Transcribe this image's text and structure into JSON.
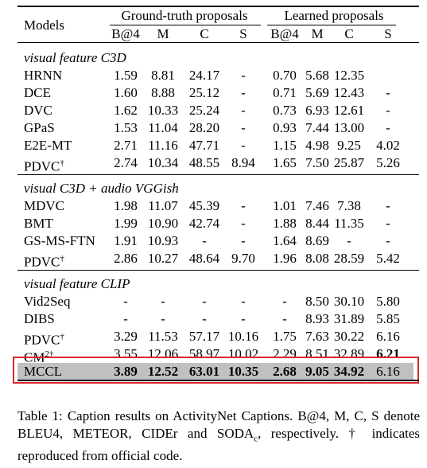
{
  "header": {
    "models": "Models",
    "groups": [
      "Ground-truth proposals",
      "Learned proposals"
    ],
    "metrics": [
      "B@4",
      "M",
      "C",
      "S",
      "B@4",
      "M",
      "C",
      "S"
    ]
  },
  "sections": [
    {
      "title": "visual feature C3D",
      "rows": [
        {
          "model": "HRNN",
          "cells": [
            "1.59",
            "8.81",
            "24.17",
            "-",
            "0.70",
            "5.68",
            "12.35",
            null
          ]
        },
        {
          "model": "DCE",
          "cells": [
            "1.60",
            "8.88",
            "25.12",
            "-",
            "0.71",
            "5.69",
            "12.43",
            "-"
          ]
        },
        {
          "model": "DVC",
          "cells": [
            "1.62",
            "10.33",
            "25.24",
            "-",
            "0.73",
            "6.93",
            "12.61",
            "-"
          ]
        },
        {
          "model": "GPaS",
          "cells": [
            "1.53",
            "11.04",
            "28.20",
            "-",
            "0.93",
            "7.44",
            "13.00",
            "-"
          ]
        },
        {
          "model": "E2E-MT",
          "cells": [
            "2.71",
            "11.16",
            "47.71",
            "-",
            "1.15",
            "4.98",
            "9.25",
            "4.02"
          ]
        },
        {
          "model": "PDVC",
          "sup": "†",
          "cells": [
            "2.74",
            "10.34",
            "48.55",
            "8.94",
            "1.65",
            "7.50",
            "25.87",
            "5.26"
          ]
        }
      ]
    },
    {
      "title": "visual C3D + audio VGGish",
      "rows": [
        {
          "model": "MDVC",
          "cells": [
            "1.98",
            "11.07",
            "45.39",
            "-",
            "1.01",
            "7.46",
            "7.38",
            "-"
          ]
        },
        {
          "model": "BMT",
          "cells": [
            "1.99",
            "10.90",
            "42.74",
            "-",
            "1.88",
            "8.44",
            "11.35",
            "-"
          ]
        },
        {
          "model": "GS-MS-FTN",
          "cells": [
            "1.91",
            "10.93",
            "-",
            "-",
            "1.64",
            "8.69",
            "-",
            "-"
          ]
        },
        {
          "model": "PDVC",
          "sup": "†",
          "cells": [
            "2.86",
            "10.27",
            "48.64",
            "9.70",
            "1.96",
            "8.08",
            "28.59",
            "5.42"
          ]
        }
      ]
    },
    {
      "title": "visual feature CLIP",
      "rows": [
        {
          "model": "Vid2Seq",
          "cells": [
            "-",
            "-",
            "-",
            "-",
            "-",
            "8.50",
            "30.10",
            "5.80"
          ]
        },
        {
          "model": "DIBS",
          "cells": [
            "-",
            "-",
            "-",
            "-",
            "-",
            "8.93",
            "31.89",
            "5.85"
          ]
        },
        {
          "model": "PDVC",
          "sup": "†",
          "cells": [
            "3.29",
            "11.53",
            "57.17",
            "10.16",
            "1.75",
            "7.63",
            "30.22",
            "6.16"
          ]
        },
        {
          "model": "CM",
          "sup": "2†",
          "cells": [
            "3.55",
            "12.06",
            "58.97",
            "10.02",
            "2.29",
            "8.51",
            "32.89",
            "6.21"
          ],
          "bold": [
            7
          ]
        },
        {
          "model": "MCCL",
          "cells": [
            "3.89",
            "12.52",
            "63.01",
            "10.35",
            "2.68",
            "9.05",
            "34.92",
            "6.16"
          ],
          "bold": [
            0,
            1,
            2,
            3,
            4,
            5,
            6
          ],
          "highlight": true
        }
      ]
    }
  ],
  "caption": {
    "text": "Table 1: Caption results on ActivityNet Captions. B@4, M, C, S denote BLEU4, METEOR, CIDEr and SODA",
    "sub": "c",
    "rest": ", respectively. † indicates reproduced from official code."
  }
}
